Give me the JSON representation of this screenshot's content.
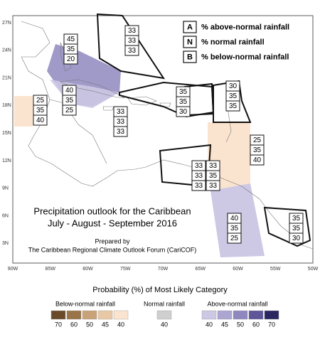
{
  "map": {
    "lat_labels": [
      "27N",
      "24N",
      "21N",
      "18N",
      "15N",
      "12N",
      "9N",
      "6N",
      "3N"
    ],
    "lon_labels": [
      "90W",
      "85W",
      "80W",
      "75W",
      "70W",
      "65W",
      "60W",
      "55W",
      "50W"
    ]
  },
  "key": [
    {
      "letter": "A",
      "text": "% above-normal rainfall"
    },
    {
      "letter": "N",
      "text": "% normal rainfall"
    },
    {
      "letter": "B",
      "text": "% below-normal rainfall"
    }
  ],
  "boxes": [
    {
      "values": [
        45,
        35,
        20
      ]
    },
    {
      "values": [
        33,
        33,
        33
      ]
    },
    {
      "values": [
        40,
        35,
        25
      ]
    },
    {
      "values": [
        25,
        35,
        40
      ]
    },
    {
      "values": [
        33,
        33,
        33
      ]
    },
    {
      "values": [
        35,
        35,
        30
      ]
    },
    {
      "values": [
        30,
        35,
        35
      ]
    },
    {
      "values": [
        25,
        35,
        40
      ]
    },
    {
      "values": [
        33,
        33,
        33
      ]
    },
    {
      "values": [
        33,
        35,
        33
      ]
    },
    {
      "values": [
        40,
        35,
        25
      ]
    },
    {
      "values": [
        35,
        35,
        30
      ]
    }
  ],
  "title": {
    "line1": "Precipitation outlook for the Caribbean",
    "line2": "July - August - September 2016",
    "prepared": "Prepared by",
    "forum": "The Caribbean Regional Climate Outlook Forum (CariCOF)"
  },
  "legend": {
    "title": "Probability (%) of Most Likely Category",
    "below": {
      "label": "Below-normal rainfall",
      "values": [
        70,
        60,
        50,
        45,
        40
      ],
      "colors": [
        "#6b4a2a",
        "#9a7448",
        "#c9a27a",
        "#e9c9a5",
        "#fbe4cf"
      ]
    },
    "normal": {
      "label": "Normal rainfall",
      "values": [
        40
      ],
      "colors": [
        "#cfcfcf"
      ]
    },
    "above": {
      "label": "Above-normal rainfall",
      "values": [
        40,
        45,
        50,
        60,
        70
      ],
      "colors": [
        "#cdc8e4",
        "#aba5d1",
        "#8f88bf",
        "#5e5698",
        "#2a2760"
      ]
    }
  }
}
